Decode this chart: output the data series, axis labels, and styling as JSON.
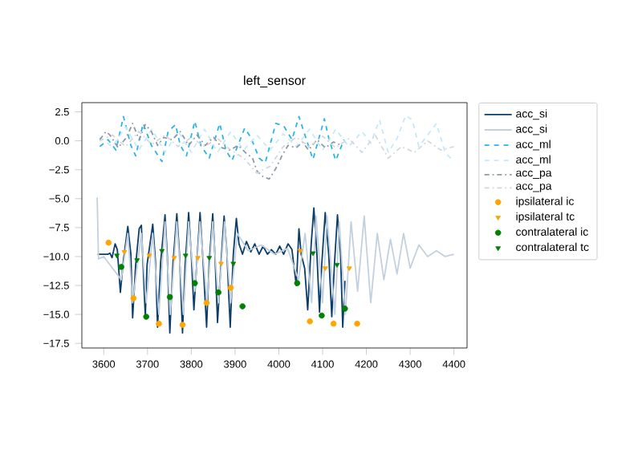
{
  "chart_data": {
    "type": "line",
    "title": "left_sensor",
    "xlim": [
      3550,
      4430
    ],
    "ylim": [
      -17.9,
      3.3
    ],
    "xticks": [
      3600,
      3700,
      3800,
      3900,
      4000,
      4100,
      4200,
      4300,
      4400
    ],
    "yticks": [
      {
        "value": 2.5,
        "label": "2.5"
      },
      {
        "value": 0,
        "label": "0.0"
      },
      {
        "value": -2.5,
        "label": "−2.5"
      },
      {
        "value": -5,
        "label": "−5.0"
      },
      {
        "value": -7.5,
        "label": "−7.5"
      },
      {
        "value": -10,
        "label": "−10.0"
      },
      {
        "value": -12.5,
        "label": "−12.5"
      },
      {
        "value": -15,
        "label": "−15.0"
      },
      {
        "value": -17.5,
        "label": "−17.5"
      }
    ],
    "legend": "right",
    "series": [
      {
        "name": "acc_si",
        "color": "#0b3d6b",
        "line_style": "solid",
        "x": [
          3586,
          3610,
          3614,
          3619,
          3626,
          3631,
          3638,
          3645,
          3655,
          3662,
          3666,
          3673,
          3681,
          3686,
          3695,
          3699,
          3712,
          3718,
          3723,
          3730,
          3740,
          3745,
          3751,
          3758,
          3767,
          3773,
          3780,
          3786,
          3794,
          3800,
          3806,
          3813,
          3820,
          3826,
          3835,
          3841,
          3849,
          3854,
          3860,
          3868,
          3875,
          3881,
          3889,
          3896,
          3903,
          3909,
          3917,
          3926,
          3936,
          3945,
          3955,
          3964,
          3974,
          3983,
          3993,
          4002,
          4011,
          4021,
          4030,
          4035,
          4040,
          4046,
          4051,
          4059,
          4066,
          4074,
          4080,
          4087,
          4093,
          4098,
          4106,
          4114,
          4121,
          4127,
          4134,
          4141,
          4146,
          4151
        ],
        "values": [
          -9.8,
          -9.8,
          -9.7,
          -10.1,
          -8.9,
          -9.4,
          -13.1,
          -10.3,
          -7.4,
          -9.8,
          -15.3,
          -10.7,
          -7.6,
          -7.3,
          -15.2,
          -10.7,
          -7.2,
          -10.3,
          -16.1,
          -10.5,
          -6.4,
          -9.8,
          -16.6,
          -10.7,
          -6.3,
          -9.8,
          -16.6,
          -10.7,
          -6.2,
          -9.8,
          -14.6,
          -10.3,
          -6.2,
          -9.8,
          -16.1,
          -10.5,
          -6.3,
          -9.8,
          -15.7,
          -10.5,
          -6.5,
          -9.4,
          -16.1,
          -9.8,
          -6.7,
          -8.9,
          -9.8,
          -8.7,
          -9.6,
          -8.9,
          -9.8,
          -9.1,
          -9.8,
          -9.4,
          -9.8,
          -9.1,
          -9.8,
          -8.9,
          -9.4,
          -11.0,
          -12.5,
          -7.6,
          -9.8,
          -11.0,
          -14.6,
          -8.9,
          -5.8,
          -9.8,
          -14.8,
          -10.7,
          -6.2,
          -9.8,
          -15.2,
          -10.7,
          -6.4,
          -9.8,
          -16.1,
          -12.1
        ]
      },
      {
        "name": "acc_si",
        "color": "#c3d0dd",
        "line_style": "solid",
        "x": [
          3585,
          3588,
          3600,
          3640,
          3655,
          3666,
          3686,
          3697,
          3712,
          3726,
          3740,
          3752,
          3767,
          3782,
          3794,
          3808,
          3820,
          3836,
          3849,
          3862,
          3876,
          3890,
          3905,
          3930,
          3960,
          3990,
          4020,
          4045,
          4060,
          4075,
          4085,
          4100,
          4110,
          4128,
          4138,
          4152,
          4165,
          4180,
          4195,
          4210,
          4225,
          4240,
          4255,
          4270,
          4285,
          4300,
          4320,
          4340,
          4360,
          4380,
          4400
        ],
        "values": [
          -4.9,
          -10.2,
          -10,
          -12,
          -8,
          -14,
          -8,
          -14,
          -8,
          -15,
          -7,
          -15,
          -7,
          -15,
          -7,
          -13,
          -7,
          -14,
          -7,
          -14,
          -7,
          -14,
          -8,
          -9.5,
          -9,
          -9.8,
          -9.3,
          -12,
          -8,
          -14,
          -6.5,
          -14,
          -6.5,
          -15,
          -7,
          -15,
          -7,
          -13,
          -6.5,
          -14,
          -8,
          -12,
          -8.5,
          -11.5,
          -8,
          -11,
          -9,
          -10,
          -9.5,
          -10,
          -9.8
        ]
      },
      {
        "name": "acc_ml",
        "color": "#29b6e6",
        "line_style": "dashed",
        "x": [
          3591,
          3610,
          3628,
          3645,
          3662,
          3673,
          3690,
          3709,
          3733,
          3747,
          3764,
          3775,
          3789,
          3808,
          3822,
          3841,
          3865,
          3879,
          3893,
          3922,
          3936,
          3955,
          3969,
          3993,
          4011,
          4030,
          4046,
          4063,
          4078,
          4104,
          4115,
          4130,
          4149
        ],
        "values": [
          -0.5,
          0.1,
          -0.8,
          2.1,
          -0.4,
          -1.3,
          1.5,
          -0.4,
          -1.8,
          0.8,
          1.4,
          -0.4,
          -1.3,
          1.7,
          -0.4,
          -1.5,
          1.5,
          -0.8,
          -1.7,
          1.1,
          0.3,
          -1.5,
          -1.9,
          1.5,
          1.3,
          0.1,
          2.1,
          0.1,
          -1.6,
          1.9,
          0.1,
          -1.7,
          0.1
        ]
      },
      {
        "name": "acc_ml",
        "color": "#c5e9f7",
        "line_style": "dashed",
        "x": [
          3590,
          3620,
          3650,
          3680,
          3710,
          3740,
          3770,
          3800,
          3830,
          3860,
          3890,
          3920,
          3950,
          3980,
          4010,
          4040,
          4070,
          4100,
          4130,
          4160,
          4190,
          4210,
          4230,
          4250,
          4270,
          4290,
          4305,
          4320,
          4340,
          4360,
          4380,
          4400
        ],
        "values": [
          0.3,
          -0.5,
          1.2,
          -0.8,
          1,
          -1,
          0.8,
          -1,
          1,
          -1,
          0.8,
          -0.8,
          0.5,
          -0.8,
          0.6,
          -0.5,
          1,
          -0.8,
          1,
          -0.5,
          0.8,
          -0.2,
          1.8,
          -1,
          0.2,
          2.2,
          1.8,
          -0.5,
          0.5,
          1.5,
          -1,
          -1.8
        ]
      },
      {
        "name": "acc_pa",
        "color": "#8f99a4",
        "line_style": "dashdot",
        "x": [
          3591,
          3605,
          3614,
          3633,
          3652,
          3666,
          3681,
          3695,
          3709,
          3723,
          3737,
          3756,
          3775,
          3794,
          3813,
          3832,
          3851,
          3870,
          3888,
          3907,
          3926,
          3940,
          3950,
          3964,
          3978,
          3993,
          4007,
          4021,
          4040,
          4054,
          4068,
          4087,
          4106,
          4125,
          4144
        ],
        "values": [
          0.1,
          0.8,
          0.5,
          -0.6,
          0.3,
          1.5,
          0.1,
          1.4,
          0.8,
          -0.4,
          0.3,
          0.1,
          0.8,
          -0.4,
          0.5,
          -0.4,
          0.3,
          -0.6,
          -0.8,
          -0.4,
          -1.1,
          -1.5,
          -2.6,
          -3.1,
          -3.3,
          -2.4,
          -1.3,
          -0.4,
          -0.6,
          -0.1,
          -0.8,
          0.1,
          -0.6,
          -0.1,
          -0.4
        ]
      },
      {
        "name": "acc_pa",
        "color": "#d3d8de",
        "line_style": "dashdot",
        "x": [
          3590,
          3620,
          3650,
          3680,
          3710,
          3740,
          3770,
          3800,
          3830,
          3860,
          3890,
          3920,
          3950,
          3980,
          4010,
          4040,
          4070,
          4100,
          4130,
          4160,
          4190,
          4220,
          4250,
          4280,
          4310,
          4340,
          4370,
          4400
        ],
        "values": [
          0,
          0.5,
          -0.5,
          0.8,
          -0.3,
          0.5,
          -0.5,
          0.3,
          -0.5,
          0.2,
          -0.8,
          -1.5,
          -2.8,
          -2.2,
          -0.5,
          0.3,
          -0.5,
          0.4,
          -0.6,
          0.2,
          -1,
          0.5,
          -1.5,
          -0.5,
          -1,
          0,
          -0.8,
          -0.5
        ]
      },
      {
        "name": "ipsilateral ic",
        "type": "scatter",
        "color": "#ffa500",
        "marker": "circle",
        "x": [
          3611,
          3668,
          3726,
          3780,
          3835,
          3890,
          4071,
          4125,
          4179
        ],
        "values": [
          -8.8,
          -13.6,
          -15.8,
          -15.9,
          -14.0,
          -12.7,
          -15.6,
          -15.8,
          -15.8
        ]
      },
      {
        "name": "ipsilateral tc",
        "type": "scatter",
        "color": "#ffa500",
        "marker": "triangle",
        "x": [
          3647,
          3704,
          3761,
          3815,
          3868,
          4049,
          4106,
          4161
        ],
        "values": [
          -9.6,
          -9.9,
          -10.1,
          -10.1,
          -10.6,
          -9.5,
          -11.0,
          -11.0
        ]
      },
      {
        "name": "contralateral ic",
        "type": "scatter",
        "color": "#008000",
        "marker": "circle",
        "x": [
          3640,
          3697,
          3751,
          3808,
          3862,
          3917,
          4042,
          4098,
          4151
        ],
        "values": [
          -10.9,
          -15.2,
          -13.5,
          -12.3,
          -13.1,
          -14.3,
          -12.3,
          -15.1,
          -14.5
        ]
      },
      {
        "name": "contralateral tc",
        "type": "scatter",
        "color": "#008000",
        "marker": "triangle",
        "x": [
          3630,
          3676,
          3733,
          3787,
          3841,
          3896,
          4078,
          4133
        ],
        "values": [
          -9.9,
          -10.3,
          -9.5,
          -9.9,
          -10.1,
          -10.6,
          -9.7,
          -10.7
        ]
      }
    ]
  }
}
